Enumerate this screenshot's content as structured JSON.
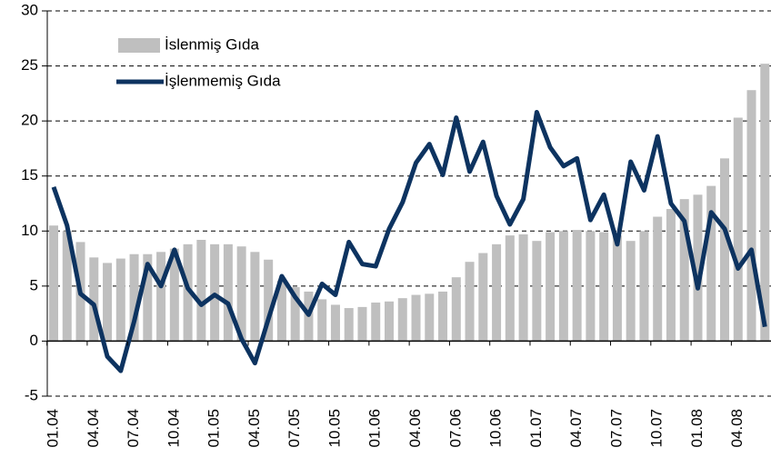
{
  "chart_data": {
    "type": "bar_line",
    "categories": [
      "01.04",
      null,
      null,
      "04.04",
      null,
      null,
      "07.04",
      null,
      null,
      "10.04",
      null,
      null,
      "01.05",
      null,
      null,
      "04.05",
      null,
      null,
      "07.05",
      null,
      null,
      "10.05",
      null,
      null,
      "01.06",
      null,
      null,
      "04.06",
      null,
      null,
      "07.06",
      null,
      null,
      "10.06",
      null,
      null,
      "01.07",
      null,
      null,
      "04.07",
      null,
      null,
      "07.07",
      null,
      null,
      "10.07",
      null,
      null,
      "01.08",
      null,
      null,
      "04.08",
      null,
      null
    ],
    "series": [
      {
        "name": "İslenmiş Gıda",
        "type": "bar",
        "color": "#bfbfbf",
        "values": [
          10.5,
          10.0,
          9.0,
          7.6,
          7.1,
          7.5,
          7.9,
          7.9,
          8.1,
          8.4,
          8.8,
          9.2,
          8.8,
          8.8,
          8.6,
          8.1,
          7.4,
          5.5,
          4.9,
          4.5,
          3.8,
          3.3,
          3.0,
          3.1,
          3.5,
          3.6,
          3.9,
          4.2,
          4.3,
          4.5,
          5.8,
          7.2,
          8.0,
          8.8,
          9.6,
          9.7,
          9.1,
          9.9,
          10.0,
          10.1,
          10.0,
          9.9,
          9.6,
          9.1,
          10.0,
          11.3,
          12.0,
          12.9,
          13.3,
          14.1,
          16.6,
          20.3,
          22.8,
          25.2
        ]
      },
      {
        "name": "İşlenmemiş Gıda",
        "type": "line",
        "color": "#0d3360",
        "values": [
          14.0,
          10.5,
          4.3,
          3.3,
          -1.4,
          -2.7,
          1.8,
          7.0,
          5.0,
          8.3,
          4.8,
          3.3,
          4.2,
          3.4,
          0.2,
          -2.0,
          2.0,
          5.9,
          4.0,
          2.4,
          5.2,
          4.2,
          9.0,
          7.0,
          6.8,
          10.2,
          12.6,
          16.2,
          17.9,
          15.1,
          20.3,
          15.4,
          18.1,
          13.2,
          10.6,
          12.9,
          20.8,
          17.6,
          15.9,
          16.6,
          11.0,
          13.3,
          8.8,
          16.3,
          13.7,
          18.6,
          12.5,
          10.9,
          4.8,
          11.7,
          10.2,
          6.6,
          8.3,
          1.3
        ]
      }
    ],
    "ylim": [
      -5,
      30
    ],
    "yticks": [
      -5,
      0,
      5,
      10,
      15,
      20,
      25,
      30
    ],
    "grid": true,
    "legend": "top-left"
  }
}
